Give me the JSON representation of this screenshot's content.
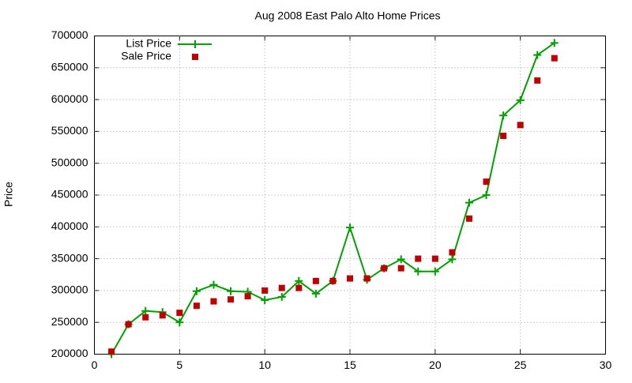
{
  "chart_data": {
    "type": "line",
    "title": "Aug 2008 East Palo Alto Home Prices",
    "y_label": "Price",
    "x": [
      1,
      2,
      3,
      4,
      5,
      6,
      7,
      8,
      9,
      10,
      11,
      12,
      13,
      14,
      15,
      16,
      17,
      18,
      19,
      20,
      21,
      22,
      23,
      24,
      25,
      26,
      27
    ],
    "series": [
      {
        "name": "List Price",
        "color": "#00a000",
        "line": true,
        "marker": "plus",
        "values": [
          200000,
          247000,
          268000,
          266000,
          250000,
          299000,
          309000,
          299000,
          298000,
          285000,
          290000,
          315000,
          295000,
          315000,
          399000,
          317000,
          335000,
          349000,
          330000,
          330000,
          349000,
          438000,
          450000,
          575000,
          599000,
          670000,
          689000
        ]
      },
      {
        "name": "Sale Price",
        "color": "#c00000",
        "line": false,
        "marker": "square",
        "values": [
          204000,
          247000,
          258000,
          261000,
          265000,
          276000,
          283000,
          286000,
          291000,
          300000,
          304000,
          304000,
          315000,
          315000,
          319000,
          319000,
          335000,
          335000,
          350000,
          350000,
          360000,
          413000,
          471000,
          543000,
          560000,
          630000,
          665000
        ]
      }
    ],
    "xlim": [
      0,
      30
    ],
    "xticks": [
      0,
      5,
      10,
      15,
      20,
      25,
      30
    ],
    "ylim": [
      200000,
      700000
    ],
    "yticks": [
      200000,
      250000,
      300000,
      350000,
      400000,
      450000,
      500000,
      550000,
      600000,
      650000,
      700000
    ],
    "grid": true,
    "legend": "top-left"
  }
}
